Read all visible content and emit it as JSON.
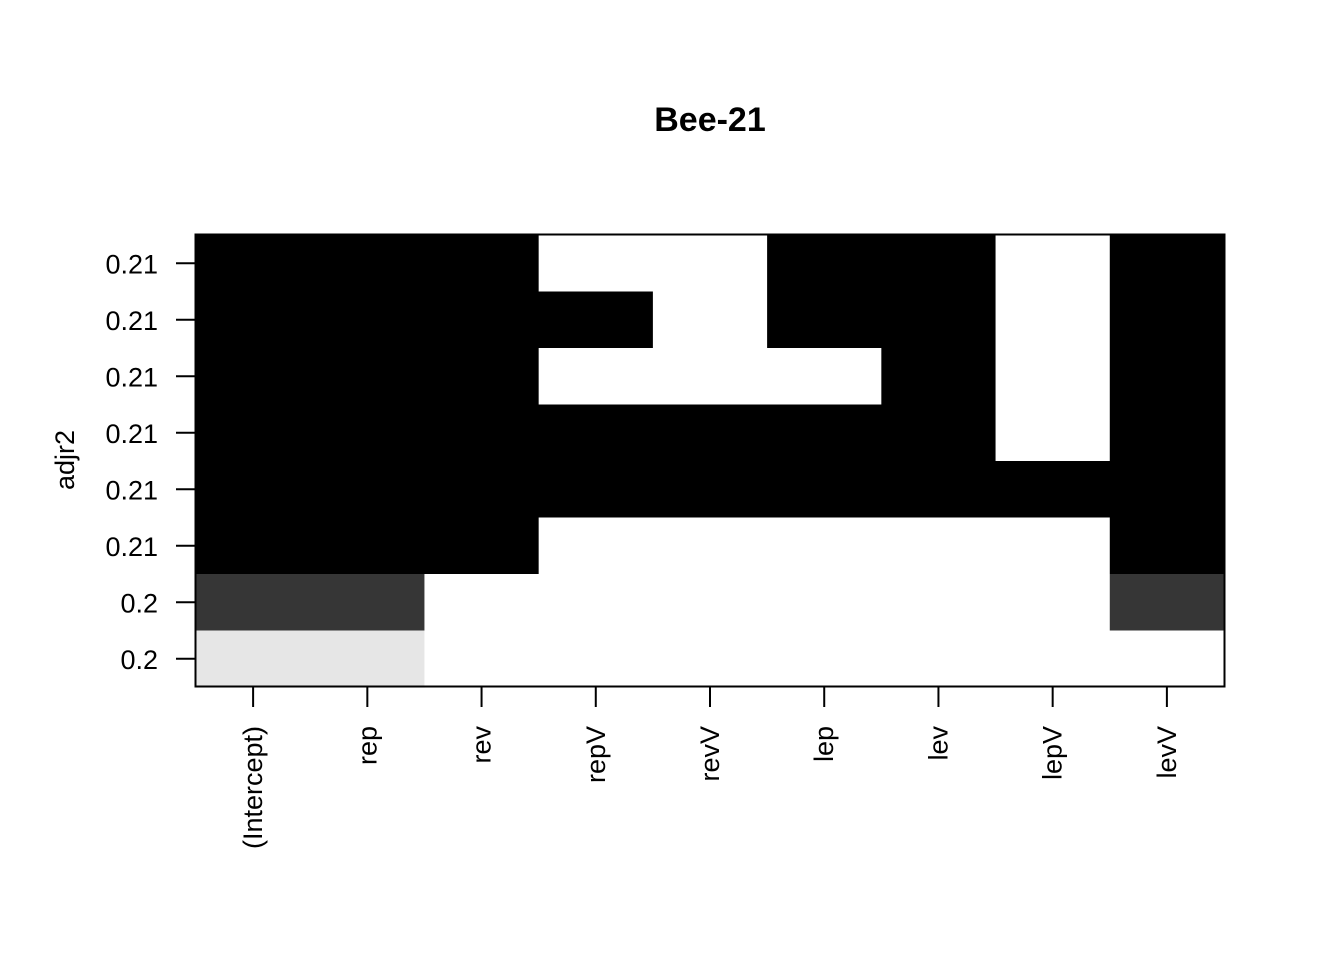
{
  "chart_data": {
    "type": "heatmap",
    "title": "Bee-21",
    "xlabel": "",
    "ylabel": "adjr2",
    "x_categories": [
      "(Intercept)",
      "rep",
      "rev",
      "repV",
      "revV",
      "lep",
      "lev",
      "lepV",
      "levV"
    ],
    "y_tick_labels": [
      "0.21",
      "0.21",
      "0.21",
      "0.21",
      "0.21",
      "0.21",
      "0.2",
      "0.2"
    ],
    "row_shades": [
      "#000000",
      "#000000",
      "#000000",
      "#000000",
      "#000000",
      "#000000",
      "#363636",
      "#e6e6e6"
    ],
    "included": [
      [
        1,
        1,
        1,
        0,
        0,
        1,
        1,
        0,
        1
      ],
      [
        1,
        1,
        1,
        1,
        0,
        1,
        1,
        0,
        1
      ],
      [
        1,
        1,
        1,
        0,
        0,
        0,
        1,
        0,
        1
      ],
      [
        1,
        1,
        1,
        1,
        1,
        1,
        1,
        0,
        1
      ],
      [
        1,
        1,
        1,
        1,
        1,
        1,
        1,
        1,
        1
      ],
      [
        1,
        1,
        1,
        0,
        0,
        0,
        0,
        0,
        1
      ],
      [
        1,
        1,
        0,
        0,
        0,
        0,
        0,
        0,
        1
      ],
      [
        1,
        1,
        0,
        0,
        0,
        0,
        0,
        0,
        0
      ]
    ],
    "grid": false,
    "legend": "none"
  }
}
